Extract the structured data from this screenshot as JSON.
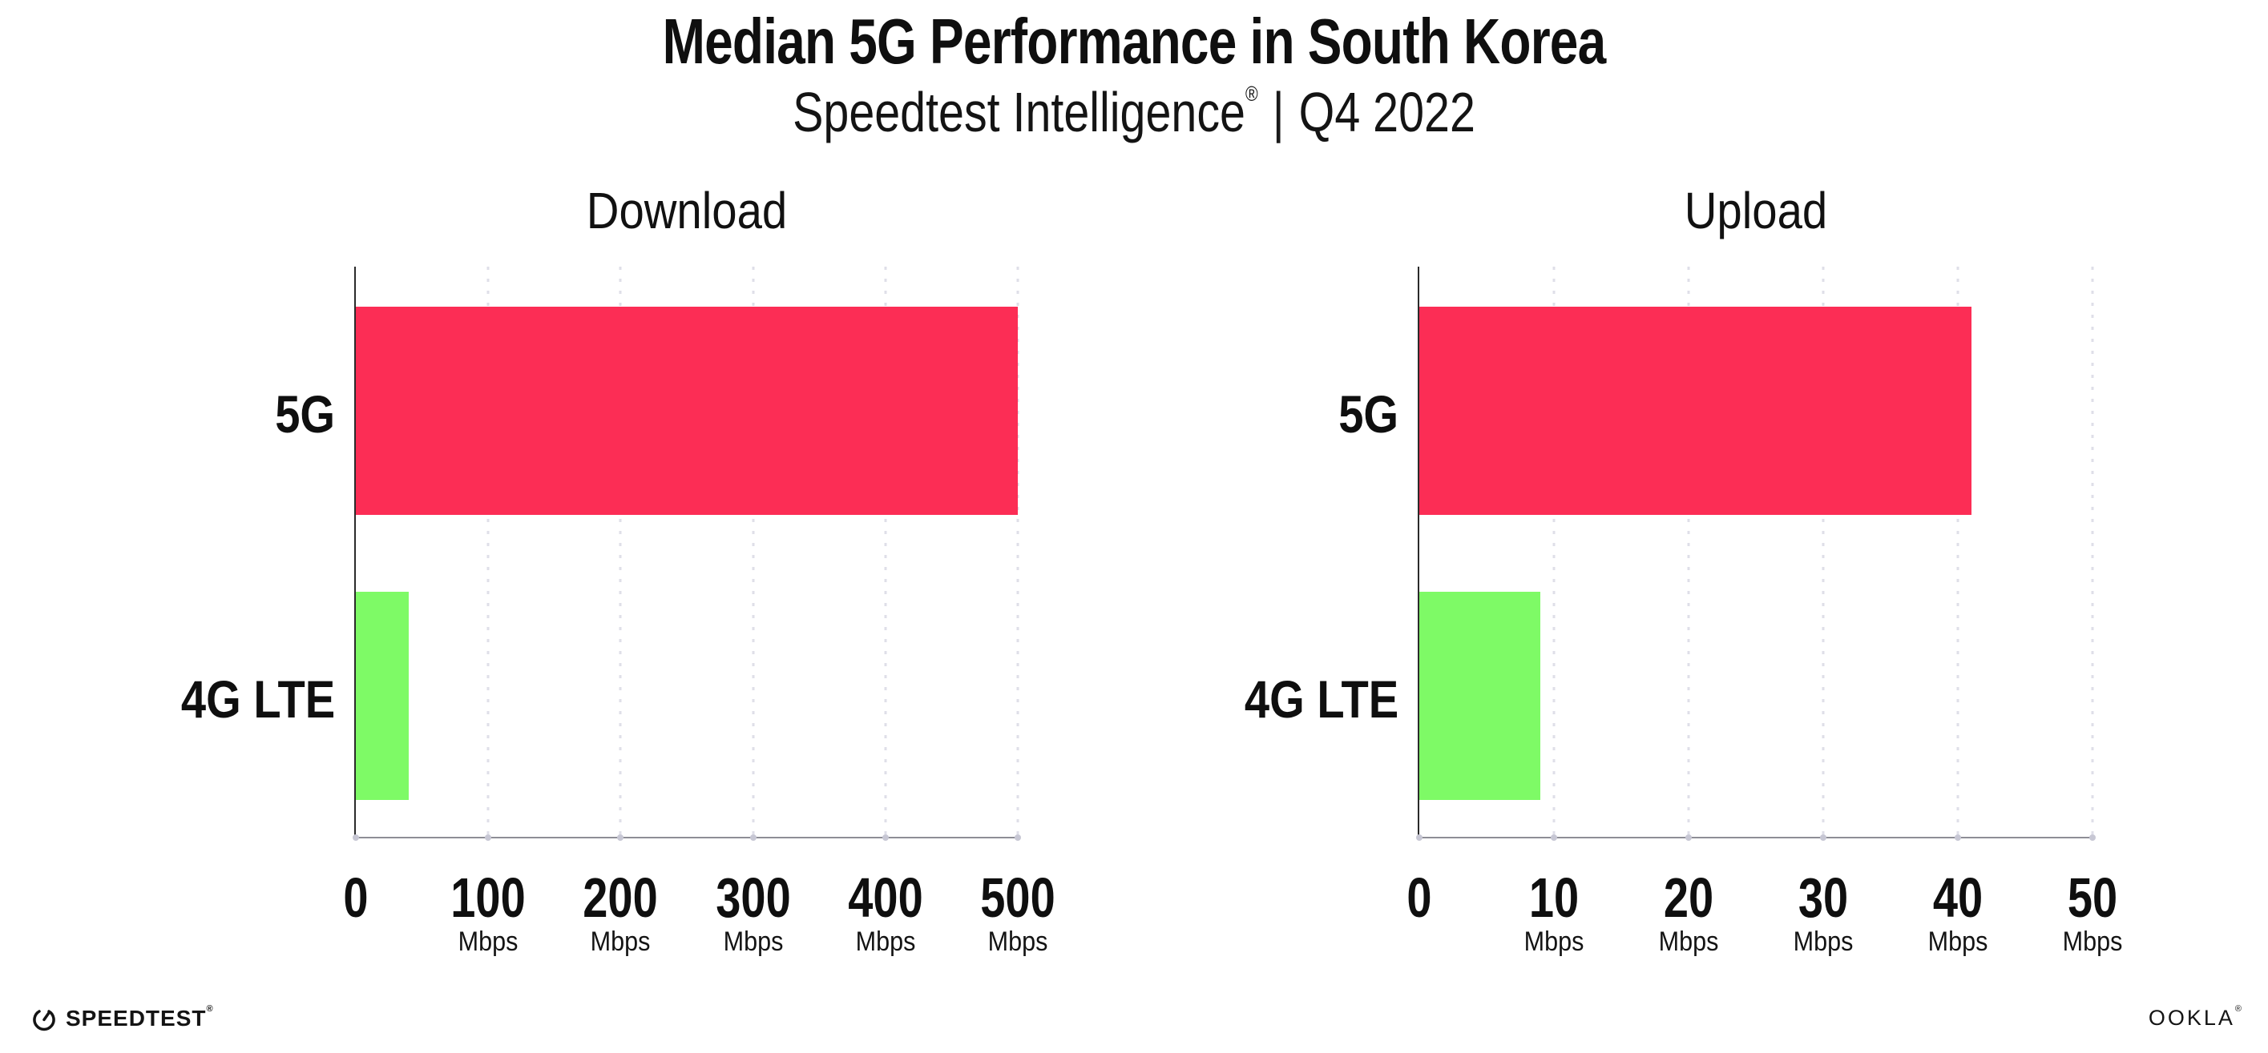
{
  "header": {
    "title": "Median 5G Performance in South Korea",
    "subtitle": {
      "brand": "Speedtest Intelligence",
      "registered": "®",
      "separator": "|",
      "period": "Q4 2022"
    }
  },
  "chart_data": [
    {
      "type": "bar",
      "orientation": "horizontal",
      "title": "Download",
      "categories": [
        "5G",
        "4G LTE"
      ],
      "values": [
        500,
        40
      ],
      "unit": "Mbps",
      "xlim": [
        0,
        500
      ],
      "xticks": [
        0,
        100,
        200,
        300,
        400,
        500
      ],
      "series_colors": [
        "#FC2D55",
        "#7EFA66"
      ],
      "grid": "vertical-dotted",
      "legend": "none"
    },
    {
      "type": "bar",
      "orientation": "horizontal",
      "title": "Upload",
      "categories": [
        "5G",
        "4G LTE"
      ],
      "values": [
        41,
        9
      ],
      "unit": "Mbps",
      "xlim": [
        0,
        50
      ],
      "xticks": [
        0,
        10,
        20,
        30,
        40,
        50
      ],
      "series_colors": [
        "#FC2D55",
        "#7EFA66"
      ],
      "grid": "vertical-dotted",
      "legend": "none"
    }
  ],
  "footer": {
    "speedtest": {
      "label": "SPEEDTEST",
      "mark": "®"
    },
    "ookla": {
      "label": "OOKLA",
      "mark": "®"
    }
  },
  "colors": {
    "bar_5g": "#FC2D55",
    "bar_4g_lte": "#7EFA66",
    "gridline": "#DFDFE8",
    "x_axis_line": "#8E8E96",
    "y_axis_line": "#2B2B2B",
    "text": "#0F0F0F"
  }
}
